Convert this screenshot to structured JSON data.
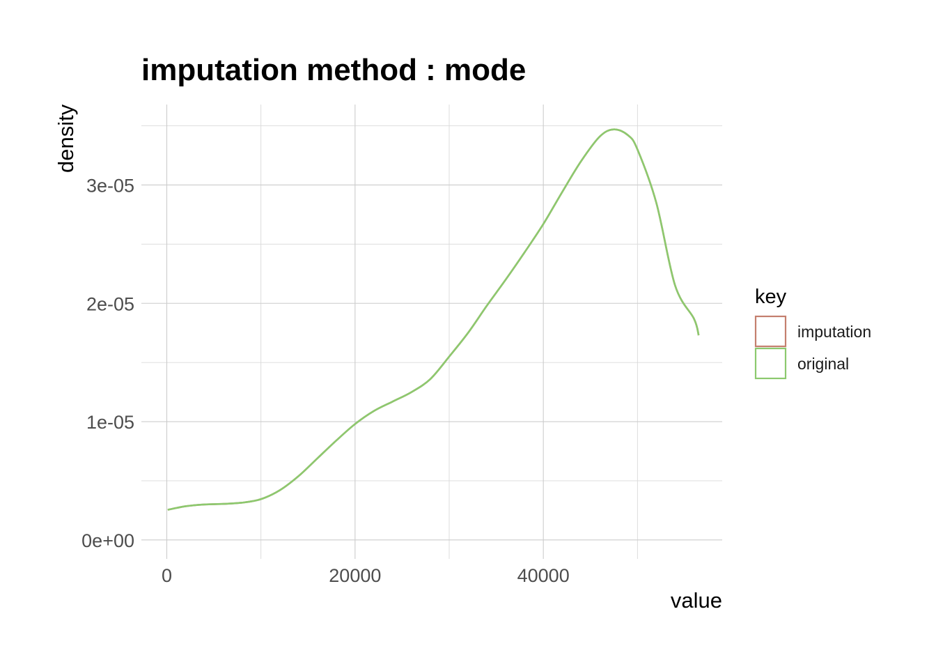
{
  "chart_data": {
    "type": "line",
    "title": "imputation method : mode",
    "xlabel": "value",
    "ylabel": "density",
    "xlim": [
      -2700,
      59000
    ],
    "ylim": [
      -1.6e-06,
      3.68e-05
    ],
    "x_ticks": [
      0,
      20000,
      40000
    ],
    "x_tick_labels": [
      "0",
      "20000",
      "40000"
    ],
    "x_minor_ticks": [
      10000,
      30000,
      50000
    ],
    "y_ticks": [
      0,
      1e-05,
      2e-05,
      3e-05
    ],
    "y_tick_labels": [
      "0e+00",
      "1e-05",
      "2e-05",
      "3e-05"
    ],
    "y_minor_ticks": [
      5e-06,
      1.5e-05,
      2.5e-05,
      3.5e-05
    ],
    "grid": true,
    "legend": {
      "title": "key",
      "position": "right",
      "entries": [
        {
          "label": "imputation",
          "color": "#c47f6e"
        },
        {
          "label": "original",
          "color": "#8cc96e"
        }
      ]
    },
    "series": [
      {
        "name": "imputation",
        "color": "#c47f6e",
        "x": [
          100,
          2000,
          4000,
          6000,
          8000,
          10000,
          12000,
          14000,
          16000,
          18000,
          20000,
          22000,
          24000,
          26000,
          28000,
          30000,
          32000,
          34000,
          36000,
          38000,
          40000,
          42000,
          44000,
          46000,
          47500,
          49000,
          50000,
          52000,
          54000,
          56000,
          56500
        ],
        "y": [
          2.55e-06,
          2.85e-06,
          3e-06,
          3.05e-06,
          3.15e-06,
          3.45e-06,
          4.2e-06,
          5.4e-06,
          6.9e-06,
          8.4e-06,
          9.8e-06,
          1.09e-05,
          1.17e-05,
          1.25e-05,
          1.36e-05,
          1.55e-05,
          1.75e-05,
          1.98e-05,
          2.2e-05,
          2.43e-05,
          2.67e-05,
          2.94e-05,
          3.2e-05,
          3.41e-05,
          3.47e-05,
          3.42e-05,
          3.3e-05,
          2.85e-05,
          2.15e-05,
          1.87e-05,
          1.73e-05
        ]
      },
      {
        "name": "original",
        "color": "#8cc96e",
        "x": [
          100,
          2000,
          4000,
          6000,
          8000,
          10000,
          12000,
          14000,
          16000,
          18000,
          20000,
          22000,
          24000,
          26000,
          28000,
          30000,
          32000,
          34000,
          36000,
          38000,
          40000,
          42000,
          44000,
          46000,
          47500,
          49000,
          50000,
          52000,
          54000,
          56000,
          56500
        ],
        "y": [
          2.55e-06,
          2.85e-06,
          3e-06,
          3.05e-06,
          3.15e-06,
          3.45e-06,
          4.2e-06,
          5.4e-06,
          6.9e-06,
          8.4e-06,
          9.8e-06,
          1.09e-05,
          1.17e-05,
          1.25e-05,
          1.36e-05,
          1.55e-05,
          1.75e-05,
          1.98e-05,
          2.2e-05,
          2.43e-05,
          2.67e-05,
          2.94e-05,
          3.2e-05,
          3.41e-05,
          3.47e-05,
          3.42e-05,
          3.3e-05,
          2.85e-05,
          2.15e-05,
          1.87e-05,
          1.73e-05
        ]
      }
    ]
  }
}
